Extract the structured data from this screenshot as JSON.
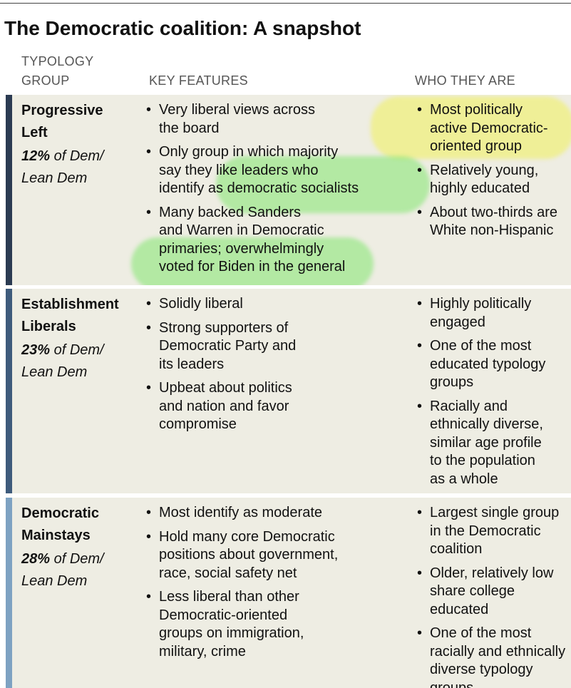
{
  "title": "The Democratic coalition: A snapshot",
  "headers": {
    "group": [
      "TYPOLOGY",
      "GROUP"
    ],
    "features": "KEY FEATURES",
    "who": "WHO THEY ARE"
  },
  "rows": [
    {
      "name": [
        "Progressive",
        "Left"
      ],
      "share": "12%",
      "share_text": [
        "of Dem/",
        "Lean Dem"
      ],
      "features": [
        [
          "Very liberal views across",
          "the board"
        ],
        [
          "Only group in which majority",
          "say they like leaders who",
          "identify as democratic socialists"
        ],
        [
          "Many backed Sanders",
          "and Warren in Democratic",
          "primaries; overwhelmingly",
          "voted for Biden in the general"
        ]
      ],
      "who": [
        [
          "Most politically",
          "active Democratic-",
          "oriented group"
        ],
        [
          "Relatively young,",
          "highly educated"
        ],
        [
          "About two-thirds are",
          "White non-Hispanic"
        ]
      ]
    },
    {
      "name": [
        "Establishment",
        "Liberals"
      ],
      "share": "23%",
      "share_text": [
        "of Dem/",
        "Lean Dem"
      ],
      "features": [
        [
          "Solidly liberal"
        ],
        [
          "Strong supporters of",
          "Democratic Party and",
          "its leaders"
        ],
        [
          "Upbeat about politics",
          "and nation and favor",
          "compromise"
        ]
      ],
      "who": [
        [
          "Highly politically",
          "engaged"
        ],
        [
          "One of the most",
          "educated typology",
          "groups"
        ],
        [
          "Racially and",
          "ethnically diverse,",
          "similar age profile",
          "to the population",
          "as a whole"
        ]
      ]
    },
    {
      "name": [
        "Democratic",
        "Mainstays"
      ],
      "share": "28%",
      "share_text": [
        "of Dem/",
        "Lean Dem"
      ],
      "features": [
        [
          "Most identify as moderate"
        ],
        [
          "Hold many core Democratic",
          "positions about government,",
          "race, social safety net"
        ],
        [
          "Less liberal than other",
          "Democratic-oriented",
          "groups on immigration,",
          "military, crime"
        ]
      ],
      "who": [
        [
          "Largest single group",
          "in the Democratic",
          "coalition"
        ],
        [
          "Older, relatively low",
          "share college",
          "educated"
        ],
        [
          "One of the most",
          "racially and ethnically",
          "diverse typology",
          "groups"
        ]
      ]
    }
  ]
}
